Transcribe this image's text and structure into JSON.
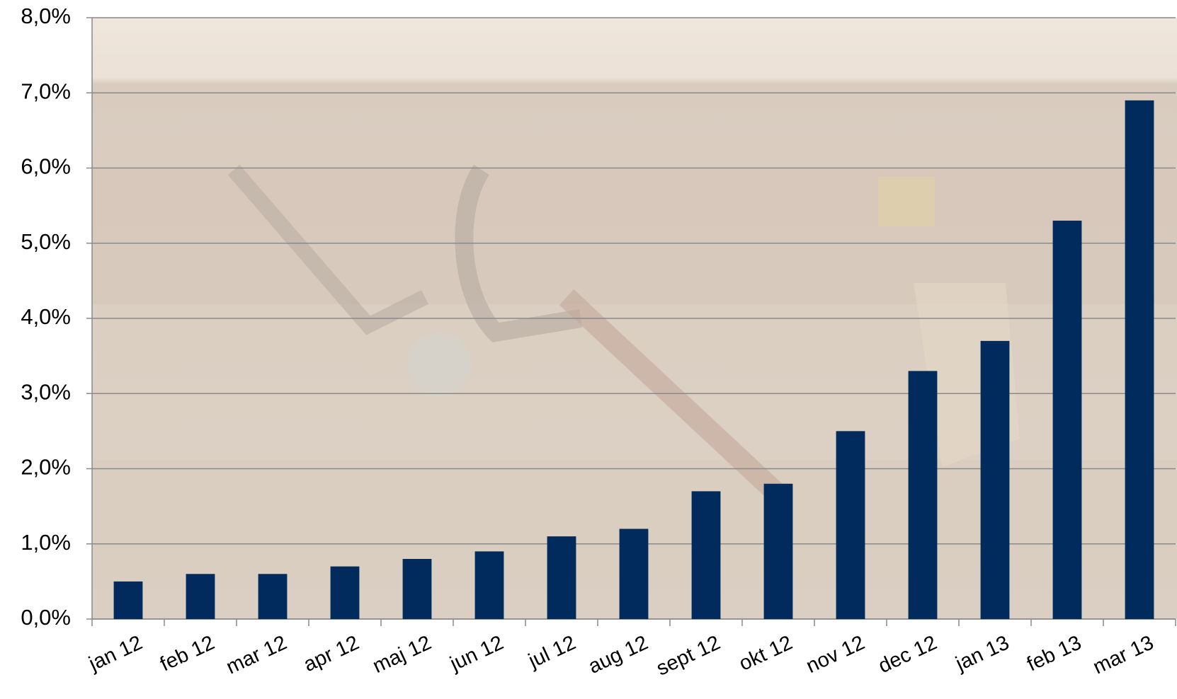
{
  "chart_data": {
    "type": "bar",
    "categories": [
      "jan 12",
      "feb 12",
      "mar 12",
      "apr 12",
      "maj 12",
      "jun 12",
      "jul 12",
      "aug 12",
      "sept 12",
      "okt 12",
      "nov 12",
      "dec 12",
      "jan 13",
      "feb 13",
      "mar 13"
    ],
    "values": [
      0.5,
      0.6,
      0.6,
      0.7,
      0.8,
      0.9,
      1.1,
      1.2,
      1.7,
      1.8,
      2.5,
      3.3,
      3.7,
      5.3,
      6.9
    ],
    "color": "#002b5c",
    "ylim": [
      0,
      8
    ],
    "yticks": [
      {
        "value": 0,
        "label": "0,0%"
      },
      {
        "value": 1,
        "label": "1,0%"
      },
      {
        "value": 2,
        "label": "2,0%"
      },
      {
        "value": 3,
        "label": "3,0%"
      },
      {
        "value": 4,
        "label": "4,0%"
      },
      {
        "value": 5,
        "label": "5,0%"
      },
      {
        "value": 6,
        "label": "6,0%"
      },
      {
        "value": 7,
        "label": "7,0%"
      },
      {
        "value": 8,
        "label": "8,0%"
      }
    ],
    "grid": true
  }
}
